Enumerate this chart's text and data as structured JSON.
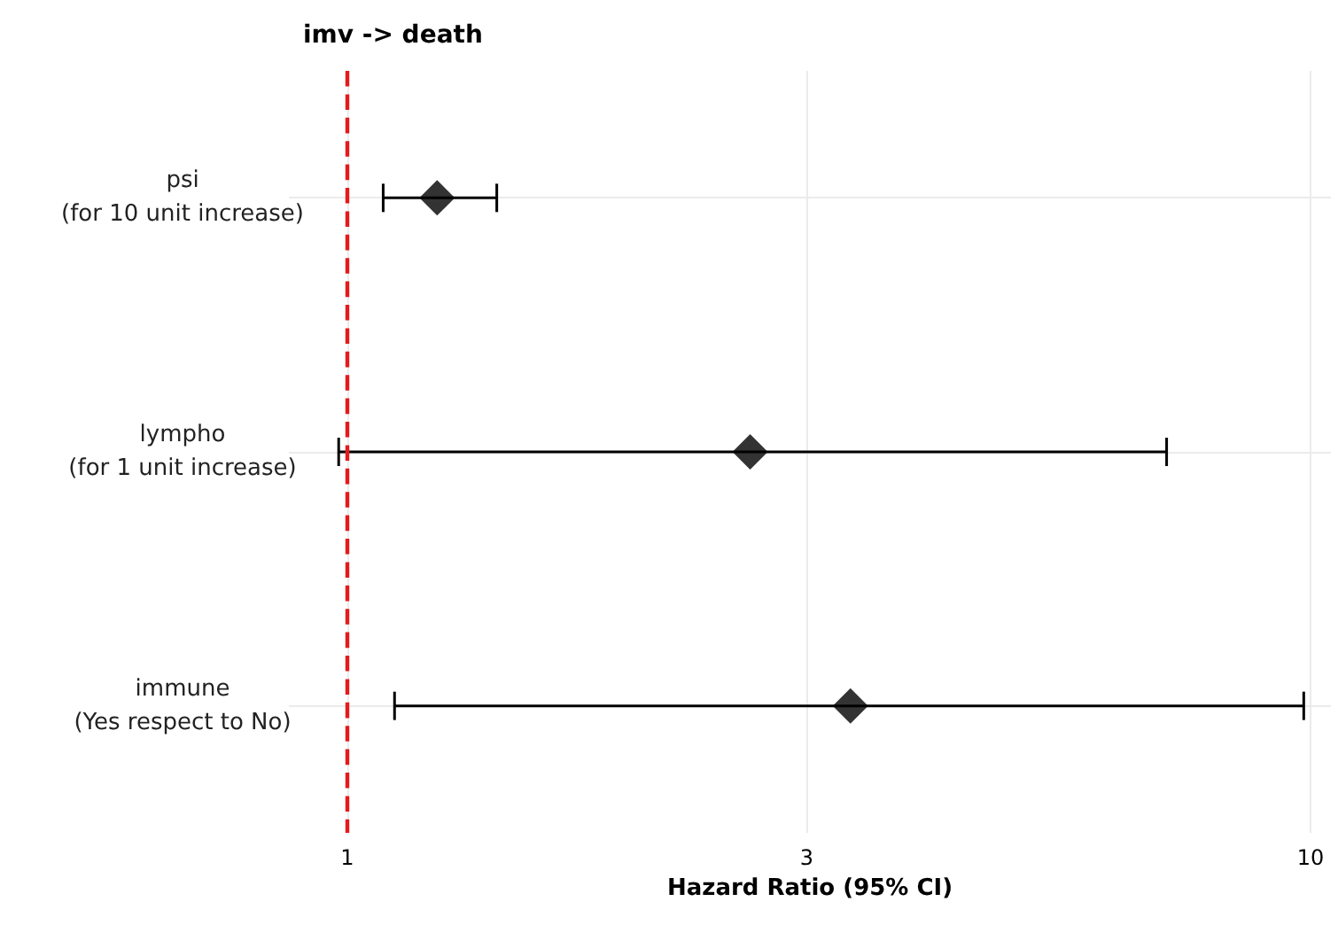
{
  "chart_data": {
    "type": "scatter",
    "orientation": "horizontal",
    "title": "imv -> death",
    "xlabel": "Hazard Ratio (95% CI)",
    "categories": [
      "psi\n(for 10 unit increase)",
      "lympho\n(for 1 unit increase)",
      "immune\n(Yes respect to No)"
    ],
    "series": [
      {
        "color": "#000000",
        "values": [
          1.24,
          2.62,
          3.33
        ],
        "errors": [
          [
            1.09,
            1.43
          ],
          [
            0.98,
            7.09
          ],
          [
            1.12,
            9.84
          ]
        ]
      }
    ],
    "log": "x",
    "xlim": [
      0.87,
      10.5
    ],
    "xticks": [
      1,
      3,
      10
    ],
    "grid": true,
    "marker": "diamond",
    "ref_lines": [
      {
        "axis": "x",
        "value": 1,
        "color": "#e41a1c",
        "line_style": "dashed"
      }
    ]
  }
}
